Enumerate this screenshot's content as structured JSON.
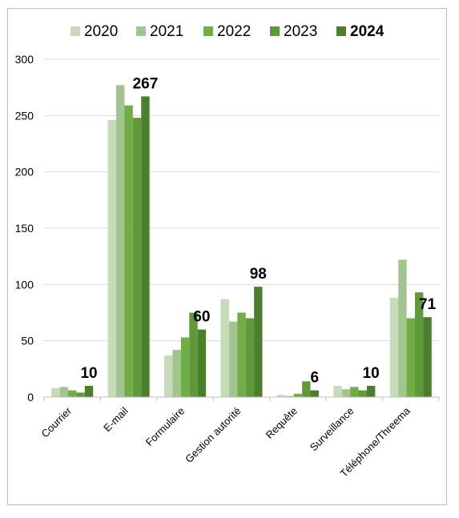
{
  "chart_data": {
    "type": "bar",
    "categories": [
      "Courrier",
      "E-mail",
      "Formulaire",
      "Gestion autorité",
      "Requête",
      "Surveillance",
      "Téléphone/Threema"
    ],
    "series": [
      {
        "name": "2020",
        "values": [
          8,
          246,
          37,
          87,
          2,
          10,
          88
        ]
      },
      {
        "name": "2021",
        "values": [
          9,
          277,
          42,
          67,
          1,
          7,
          122
        ]
      },
      {
        "name": "2022",
        "values": [
          6,
          259,
          53,
          75,
          3,
          9,
          70
        ]
      },
      {
        "name": "2023",
        "values": [
          4,
          248,
          75,
          70,
          14,
          6,
          93
        ]
      },
      {
        "name": "2024",
        "values": [
          10,
          267,
          60,
          98,
          6,
          10,
          71
        ]
      }
    ],
    "data_labels": [
      "10",
      "267",
      "60",
      "98",
      "6",
      "10",
      "71"
    ],
    "highlight_series": "2024",
    "ylim": [
      0,
      300
    ],
    "yticks": [
      "0",
      "50",
      "100",
      "150",
      "200",
      "250",
      "300"
    ],
    "xlabel": "",
    "ylabel": "",
    "title": "",
    "grid": true,
    "legend_position": "top",
    "colors": [
      "#c6dbb8",
      "#a2c48e",
      "#70ad47",
      "#5e9a3a",
      "#4b7f2c"
    ],
    "gridline_color": "#d9d9d9",
    "axis_color": "#bfbfbf"
  }
}
